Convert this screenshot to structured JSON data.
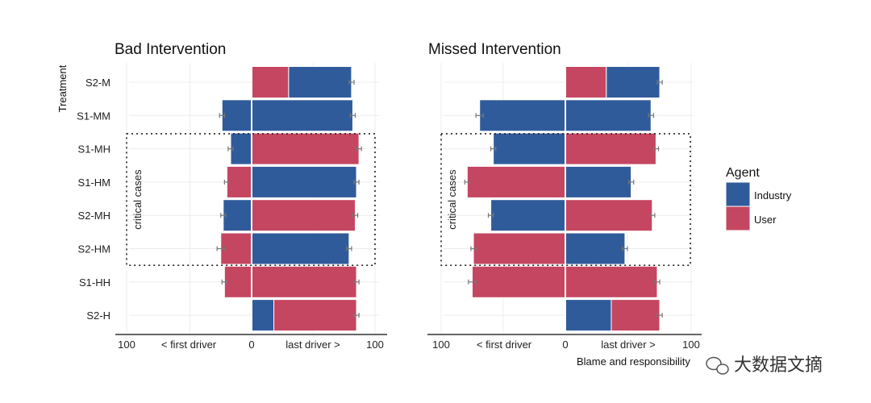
{
  "chart_data": {
    "type": "bar",
    "orientation": "horizontal",
    "stacked": true,
    "ylabel": "Treatment",
    "xlabel": "Blame and responsibility",
    "x_range": [
      -100,
      100
    ],
    "xtick_labels": [
      "100",
      "< first driver",
      "0",
      "last driver >",
      "100"
    ],
    "categories": [
      "S2-M",
      "S1-MM",
      "S1-MH",
      "S1-HM",
      "S2-MH",
      "S2-HM",
      "S1-HH",
      "S2-H"
    ],
    "legend": {
      "title": "Agent",
      "position": "right",
      "entries": [
        {
          "name": "Industry",
          "color": "#305b9b"
        },
        {
          "name": "User",
          "color": "#c54660"
        }
      ]
    },
    "annotation": {
      "text": "critical cases",
      "categories": [
        "S1-MH",
        "S1-HM",
        "S2-MH",
        "S2-HM"
      ]
    },
    "panels": [
      {
        "title": "Bad Intervention",
        "first_driver": [
          {
            "agent": "User",
            "value": 0,
            "err": 0
          },
          {
            "agent": "Industry",
            "value": 24,
            "err": 2
          },
          {
            "agent": "Industry",
            "value": 17,
            "err": 2
          },
          {
            "agent": "User",
            "value": 20,
            "err": 2
          },
          {
            "agent": "Industry",
            "value": 23,
            "err": 2
          },
          {
            "agent": "User",
            "value": 25,
            "err": 3
          },
          {
            "agent": "User",
            "value": 22,
            "err": 2
          },
          {
            "agent": "User",
            "value": 0,
            "err": 0
          }
        ],
        "last_driver": [
          {
            "segments": [
              {
                "agent": "User",
                "value": 30
              },
              {
                "agent": "Industry",
                "value": 51
              }
            ],
            "err": 2
          },
          {
            "segments": [
              {
                "agent": "Industry",
                "value": 82
              }
            ],
            "err": 2
          },
          {
            "segments": [
              {
                "agent": "User",
                "value": 87
              }
            ],
            "err": 2
          },
          {
            "segments": [
              {
                "agent": "Industry",
                "value": 85
              }
            ],
            "err": 2
          },
          {
            "segments": [
              {
                "agent": "User",
                "value": 84
              }
            ],
            "err": 2
          },
          {
            "segments": [
              {
                "agent": "Industry",
                "value": 79
              }
            ],
            "err": 2
          },
          {
            "segments": [
              {
                "agent": "User",
                "value": 85
              }
            ],
            "err": 2
          },
          {
            "segments": [
              {
                "agent": "Industry",
                "value": 18
              },
              {
                "agent": "User",
                "value": 67
              }
            ],
            "err": 2
          }
        ]
      },
      {
        "title": "Missed Intervention",
        "first_driver": [
          {
            "agent": "User",
            "value": 0,
            "err": 0
          },
          {
            "agent": "Industry",
            "value": 69,
            "err": 3
          },
          {
            "agent": "Industry",
            "value": 58,
            "err": 2
          },
          {
            "agent": "User",
            "value": 79,
            "err": 2
          },
          {
            "agent": "Industry",
            "value": 60,
            "err": 2
          },
          {
            "agent": "User",
            "value": 74,
            "err": 2
          },
          {
            "agent": "User",
            "value": 75,
            "err": 3
          },
          {
            "agent": "User",
            "value": 0,
            "err": 0
          }
        ],
        "last_driver": [
          {
            "segments": [
              {
                "agent": "User",
                "value": 33
              },
              {
                "agent": "Industry",
                "value": 43
              }
            ],
            "err": 2
          },
          {
            "segments": [
              {
                "agent": "Industry",
                "value": 69
              }
            ],
            "err": 2
          },
          {
            "segments": [
              {
                "agent": "User",
                "value": 73
              }
            ],
            "err": 2
          },
          {
            "segments": [
              {
                "agent": "Industry",
                "value": 53
              }
            ],
            "err": 2
          },
          {
            "segments": [
              {
                "agent": "User",
                "value": 70
              }
            ],
            "err": 2
          },
          {
            "segments": [
              {
                "agent": "Industry",
                "value": 48
              }
            ],
            "err": 2
          },
          {
            "segments": [
              {
                "agent": "User",
                "value": 74
              }
            ],
            "err": 2
          },
          {
            "segments": [
              {
                "agent": "Industry",
                "value": 37
              },
              {
                "agent": "User",
                "value": 39
              }
            ],
            "err": 2
          }
        ]
      }
    ]
  },
  "watermark": {
    "text": "大数据文摘",
    "icon": "wechat-icon"
  }
}
